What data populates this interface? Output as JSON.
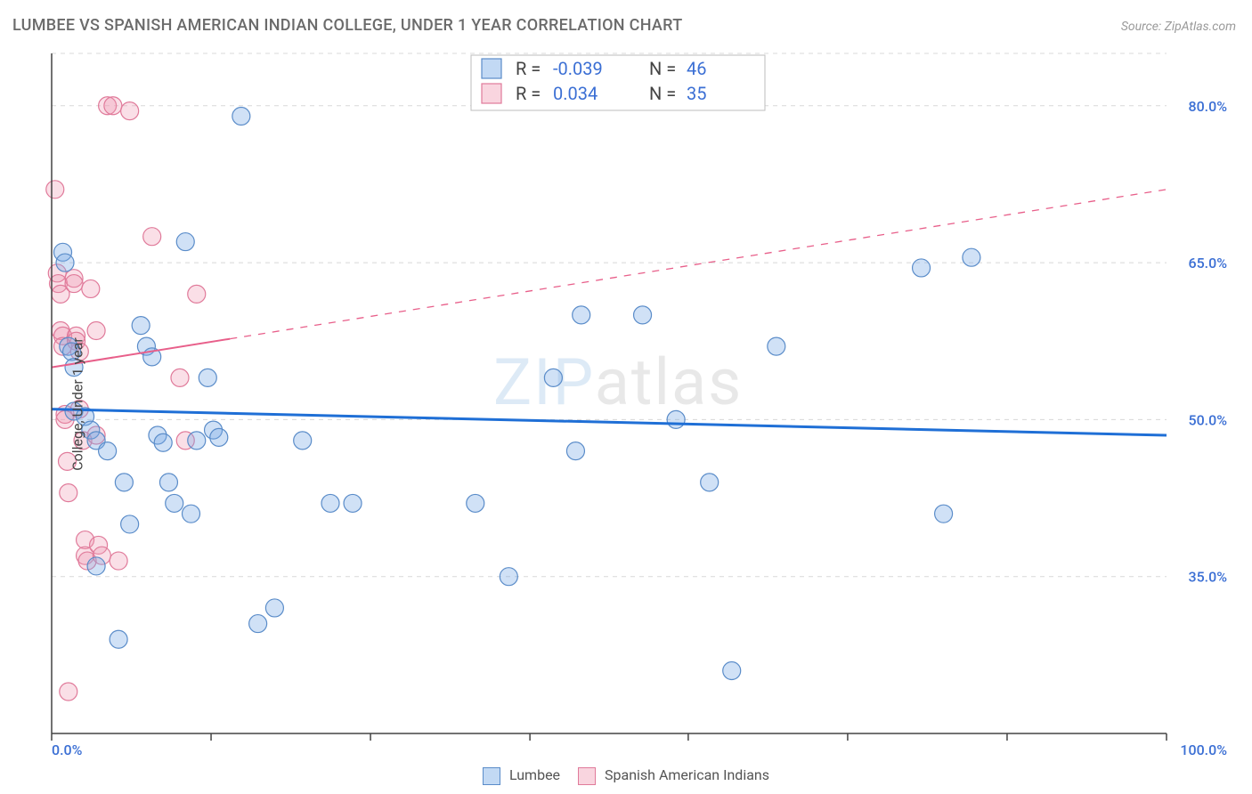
{
  "title": "LUMBEE VS SPANISH AMERICAN INDIAN COLLEGE, UNDER 1 YEAR CORRELATION CHART",
  "source": "Source: ZipAtlas.com",
  "ylabel": "College, Under 1 year",
  "watermark": {
    "part1": "ZIP",
    "part2": "atlas"
  },
  "chart": {
    "type": "scatter",
    "background_color": "#ffffff",
    "grid_color": "#d8d8d8",
    "axis_color": "#444444",
    "point_radius": 10,
    "font_family": "Arial",
    "title_fontsize": 18,
    "label_fontsize": 16,
    "tick_fontsize": 16,
    "legend_fontsize": 20,
    "xlim": [
      0,
      100
    ],
    "ylim": [
      20,
      85
    ],
    "yticks": [
      35,
      50,
      65,
      80
    ],
    "ytick_labels": [
      "35.0%",
      "50.0%",
      "65.0%",
      "80.0%"
    ],
    "xtick_positions": [
      0,
      14.3,
      28.6,
      42.9,
      57.1,
      71.4,
      85.7,
      100
    ],
    "xtick_labels_shown": {
      "first": "0.0%",
      "last": "100.0%"
    },
    "series": {
      "lumbee": {
        "label": "Lumbee",
        "color_fill": "rgba(120,170,230,0.35)",
        "color_stroke": "#5a8cc9",
        "trend_color": "#1f6fd6",
        "trend_style": "solid",
        "trend_width": 3,
        "R": "-0.039",
        "N": "46",
        "trend": {
          "x1": 0,
          "y1": 51.0,
          "x2": 100,
          "y2": 48.5
        },
        "points": [
          [
            1.0,
            66.0
          ],
          [
            1.2,
            65.0
          ],
          [
            1.5,
            57.0
          ],
          [
            1.8,
            56.5
          ],
          [
            2.0,
            55.0
          ],
          [
            2.0,
            50.8
          ],
          [
            3.0,
            50.3
          ],
          [
            3.5,
            49.0
          ],
          [
            4.0,
            48.0
          ],
          [
            4.0,
            36.0
          ],
          [
            5.0,
            47.0
          ],
          [
            6.0,
            29.0
          ],
          [
            6.5,
            44.0
          ],
          [
            7.0,
            40.0
          ],
          [
            8.0,
            59.0
          ],
          [
            8.5,
            57.0
          ],
          [
            9.0,
            56.0
          ],
          [
            9.5,
            48.5
          ],
          [
            10.0,
            47.8
          ],
          [
            10.5,
            44.0
          ],
          [
            11.0,
            42.0
          ],
          [
            12.0,
            67.0
          ],
          [
            12.5,
            41.0
          ],
          [
            13.0,
            48.0
          ],
          [
            14.0,
            54.0
          ],
          [
            14.5,
            49.0
          ],
          [
            15.0,
            48.3
          ],
          [
            17.0,
            79.0
          ],
          [
            18.5,
            30.5
          ],
          [
            20.0,
            32.0
          ],
          [
            22.5,
            48.0
          ],
          [
            25.0,
            42.0
          ],
          [
            27.0,
            42.0
          ],
          [
            38.0,
            42.0
          ],
          [
            41.0,
            35.0
          ],
          [
            45.0,
            54.0
          ],
          [
            47.0,
            47.0
          ],
          [
            47.5,
            60.0
          ],
          [
            53.0,
            60.0
          ],
          [
            56.0,
            50.0
          ],
          [
            59.0,
            44.0
          ],
          [
            61.0,
            26.0
          ],
          [
            65.0,
            57.0
          ],
          [
            78.0,
            64.5
          ],
          [
            80.0,
            41.0
          ],
          [
            82.5,
            65.5
          ]
        ]
      },
      "spanish": {
        "label": "Spanish American Indians",
        "color_fill": "rgba(240,150,175,0.30)",
        "color_stroke": "#e07a9a",
        "trend_color": "#e85f8a",
        "trend_style": "dashed",
        "trend_width": 2,
        "solid_until_x": 16,
        "R": "0.034",
        "N": "35",
        "trend": {
          "x1": 0,
          "y1": 55.0,
          "x2": 100,
          "y2": 72.0
        },
        "points": [
          [
            0.3,
            72.0
          ],
          [
            0.5,
            64.0
          ],
          [
            0.6,
            63.0
          ],
          [
            0.8,
            62.0
          ],
          [
            0.8,
            58.5
          ],
          [
            1.0,
            58.0
          ],
          [
            1.0,
            57.0
          ],
          [
            1.2,
            50.5
          ],
          [
            1.2,
            50.0
          ],
          [
            1.4,
            46.0
          ],
          [
            1.5,
            43.0
          ],
          [
            1.5,
            24.0
          ],
          [
            2.0,
            63.5
          ],
          [
            2.0,
            63.0
          ],
          [
            2.2,
            58.0
          ],
          [
            2.2,
            57.5
          ],
          [
            2.5,
            56.5
          ],
          [
            2.5,
            51.0
          ],
          [
            2.8,
            48.0
          ],
          [
            3.0,
            38.5
          ],
          [
            3.0,
            37.0
          ],
          [
            3.2,
            36.5
          ],
          [
            3.5,
            62.5
          ],
          [
            4.0,
            58.5
          ],
          [
            4.0,
            48.5
          ],
          [
            4.2,
            38.0
          ],
          [
            4.5,
            37.0
          ],
          [
            5.0,
            80.0
          ],
          [
            5.5,
            80.0
          ],
          [
            6.0,
            36.5
          ],
          [
            7.0,
            79.5
          ],
          [
            9.0,
            67.5
          ],
          [
            11.5,
            54.0
          ],
          [
            13.0,
            62.0
          ],
          [
            12.0,
            48.0
          ]
        ]
      }
    }
  },
  "legend_top": {
    "rows": [
      {
        "swatch": "blue",
        "R_label": "R = ",
        "R_value": "-0.039",
        "N_label": "N = ",
        "N_value": "46"
      },
      {
        "swatch": "pink",
        "R_label": "R = ",
        "R_value": "0.034",
        "N_label": "N = ",
        "N_value": "35"
      }
    ]
  },
  "legend_bottom": [
    {
      "swatch": "blue",
      "label": "Lumbee"
    },
    {
      "swatch": "pink",
      "label": "Spanish American Indians"
    }
  ]
}
